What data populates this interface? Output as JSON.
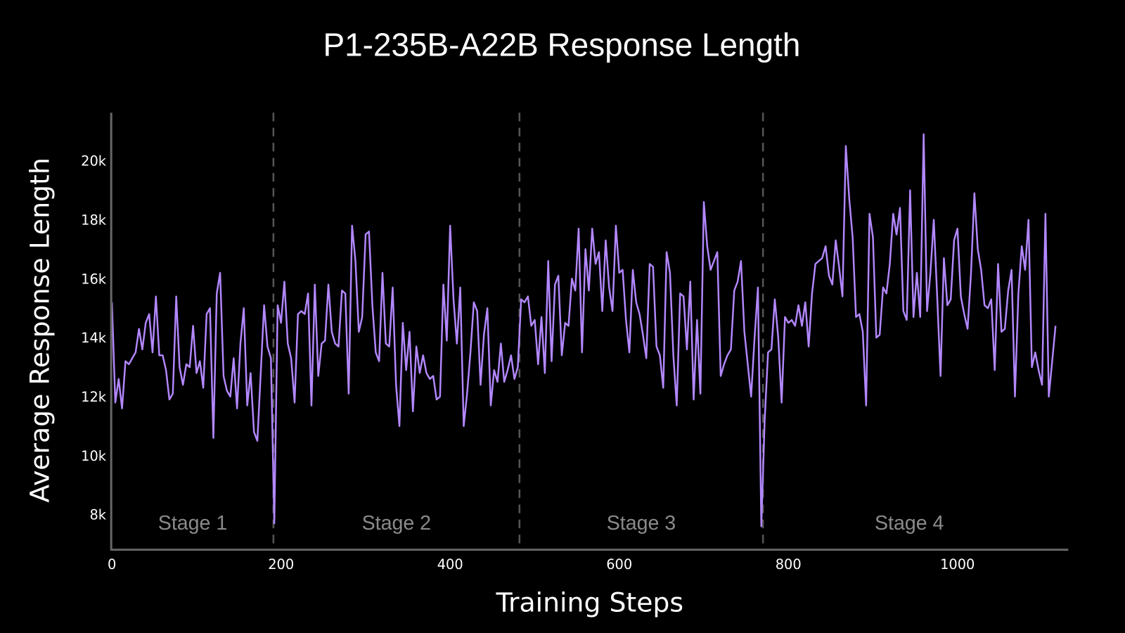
{
  "chart_data": {
    "type": "line",
    "title": "P1-235B-A22B Response Length",
    "xlabel": "Training Steps",
    "ylabel": "Average Response Length",
    "xlim": [
      0,
      1130
    ],
    "ylim": [
      7000,
      21600
    ],
    "x_ticks": [
      0,
      200,
      400,
      600,
      800,
      1000
    ],
    "x_tick_labels": [
      "0",
      "200",
      "400",
      "600",
      "800",
      "1000"
    ],
    "y_ticks": [
      8000,
      10000,
      12000,
      14000,
      16000,
      18000,
      20000
    ],
    "y_tick_labels": [
      "8k",
      "10k",
      "12k",
      "14k",
      "16k",
      "18k",
      "20k"
    ],
    "grid": false,
    "line_color": "#b388ff",
    "stage_boundaries": [
      191,
      482,
      770
    ],
    "stages": [
      {
        "label": "Stage 1",
        "start": 0,
        "end": 191
      },
      {
        "label": "Stage 2",
        "start": 191,
        "end": 482
      },
      {
        "label": "Stage 3",
        "start": 482,
        "end": 770
      },
      {
        "label": "Stage 4",
        "start": 770,
        "end": 1116
      }
    ],
    "series": [
      {
        "x": [
          0,
          4,
          8,
          12,
          16,
          20,
          24,
          28,
          32,
          36,
          40,
          44,
          48,
          52,
          56,
          60,
          64,
          68,
          72,
          76,
          80,
          84,
          88,
          92,
          96,
          100,
          104,
          108,
          112,
          116,
          120,
          124,
          128,
          132,
          136,
          140,
          144,
          148,
          152,
          156,
          160,
          164,
          168,
          172,
          176,
          180,
          184,
          188,
          192,
          196,
          200,
          204,
          208,
          212,
          216,
          220,
          224,
          228,
          232,
          236,
          240,
          244,
          248,
          252,
          256,
          260,
          264,
          268,
          272,
          276,
          280,
          284,
          288,
          292,
          296,
          300,
          304,
          308,
          312,
          316,
          320,
          324,
          328,
          332,
          336,
          340,
          344,
          348,
          352,
          356,
          360,
          364,
          368,
          372,
          376,
          380,
          384,
          388,
          392,
          396,
          400,
          404,
          408,
          412,
          416,
          420,
          424,
          428,
          432,
          436,
          440,
          444,
          448,
          452,
          456,
          460,
          464,
          468,
          472,
          476,
          480,
          484,
          488,
          492,
          496,
          500,
          504,
          508,
          512,
          516,
          520,
          524,
          528,
          532,
          536,
          540,
          544,
          548,
          552,
          556,
          560,
          564,
          568,
          572,
          576,
          580,
          584,
          588,
          592,
          596,
          600,
          604,
          608,
          612,
          616,
          620,
          624,
          628,
          632,
          636,
          640,
          644,
          648,
          652,
          656,
          660,
          664,
          668,
          672,
          676,
          680,
          684,
          688,
          692,
          696,
          700,
          704,
          708,
          712,
          716,
          720,
          724,
          728,
          732,
          736,
          740,
          744,
          748,
          752,
          756,
          760,
          764,
          768,
          772,
          776,
          780,
          784,
          788,
          792,
          796,
          800,
          804,
          808,
          812,
          816,
          820,
          824,
          828,
          832,
          836,
          840,
          844,
          848,
          852,
          856,
          860,
          864,
          868,
          872,
          876,
          880,
          884,
          888,
          892,
          896,
          900,
          904,
          908,
          912,
          916,
          920,
          924,
          928,
          932,
          936,
          940,
          944,
          948,
          952,
          956,
          960,
          964,
          968,
          972,
          976,
          980,
          984,
          988,
          992,
          996,
          1000,
          1004,
          1008,
          1012,
          1016,
          1020,
          1024,
          1028,
          1032,
          1036,
          1040,
          1044,
          1048,
          1052,
          1056,
          1060,
          1064,
          1068,
          1072,
          1076,
          1080,
          1084,
          1088,
          1092,
          1096,
          1100,
          1104,
          1108,
          1112,
          1116
        ],
        "y": [
          15200,
          11800,
          12600,
          11600,
          13200,
          13100,
          13300,
          13500,
          14300,
          13600,
          14500,
          14800,
          13500,
          15400,
          13400,
          13400,
          12900,
          11900,
          12100,
          15400,
          13000,
          12400,
          13100,
          13000,
          14400,
          12800,
          13200,
          12300,
          14800,
          15000,
          10600,
          15500,
          16200,
          12700,
          12200,
          12000,
          13300,
          11600,
          13800,
          15000,
          11700,
          12800,
          10800,
          10500,
          12800,
          15100,
          13700,
          13300,
          7700,
          15100,
          14500,
          15900,
          13800,
          13300,
          11800,
          14800,
          14900,
          14800,
          15500,
          11700,
          15800,
          12700,
          13800,
          13900,
          15800,
          14200,
          13800,
          13700,
          15600,
          15500,
          12100,
          17800,
          16600,
          14200,
          14700,
          17500,
          17600,
          15100,
          13500,
          13200,
          16200,
          13800,
          13700,
          15700,
          12400,
          11000,
          14500,
          12900,
          14200,
          11500,
          13700,
          12800,
          13400,
          12800,
          12600,
          12700,
          11900,
          12000,
          15800,
          13900,
          17800,
          15300,
          13800,
          15700,
          11000,
          12100,
          13500,
          15200,
          14900,
          12400,
          14100,
          15000,
          11700,
          12900,
          12500,
          13800,
          12500,
          12900,
          13400,
          12600,
          13000,
          15300,
          15200,
          15400,
          14400,
          14600,
          13100,
          14700,
          12800,
          16600,
          13200,
          15800,
          16100,
          13400,
          14500,
          14400,
          16000,
          15600,
          17700,
          13500,
          17000,
          15600,
          17700,
          16500,
          16900,
          14900,
          17300,
          15700,
          14900,
          17800,
          16200,
          16300,
          14600,
          13500,
          16300,
          15200,
          14800,
          14100,
          13300,
          16500,
          16400,
          13700,
          13400,
          12300,
          16900,
          16200,
          13400,
          11700,
          15500,
          15400,
          13600,
          15900,
          11900,
          14600,
          12100,
          18600,
          17100,
          16300,
          16600,
          16900,
          12700,
          13100,
          13400,
          13600,
          15600,
          15900,
          16600,
          14200,
          13100,
          12000,
          14000,
          15700,
          7600,
          11200,
          13500,
          13600,
          15300,
          14000,
          11800,
          14700,
          14500,
          14600,
          14400,
          15100,
          14400,
          15200,
          13700,
          15500,
          16500,
          16600,
          16700,
          17100,
          16100,
          15800,
          17300,
          16400,
          15400,
          20500,
          18700,
          17400,
          14700,
          14800,
          14200,
          11700,
          18200,
          17400,
          14000,
          14100,
          15700,
          15500,
          16500,
          18200,
          17500,
          18400,
          14900,
          14600,
          19000,
          14700,
          16200,
          14700,
          20900,
          14900,
          16200,
          18000,
          15400,
          12700,
          16700,
          15100,
          15300,
          17300,
          17700,
          15400,
          14800,
          14300,
          16200,
          18900,
          17000,
          16300,
          15100,
          15000,
          15300,
          12900,
          16500,
          14200,
          14300,
          15600,
          16300,
          12000,
          15500,
          17100,
          16300,
          18000,
          13000,
          13500,
          12900,
          12400,
          18200,
          12000,
          13200,
          14400
        ]
      }
    ]
  }
}
